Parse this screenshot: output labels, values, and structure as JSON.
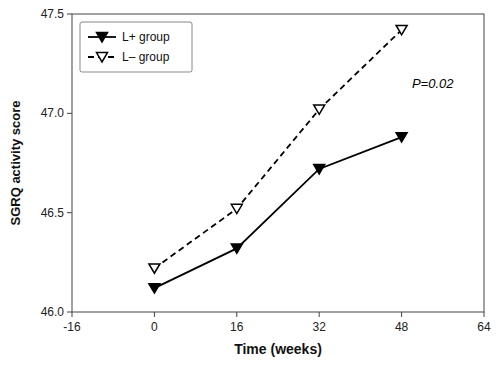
{
  "chart_data": {
    "type": "line",
    "x": [
      0,
      16,
      32,
      48
    ],
    "series": [
      {
        "name": "L+ group",
        "color": "#000000",
        "values": [
          46.12,
          46.32,
          46.72,
          46.88
        ],
        "line_style": "solid",
        "marker": "triangle-down"
      },
      {
        "name": "L– group",
        "color": "#000000",
        "values": [
          46.22,
          46.52,
          47.02,
          47.42
        ],
        "line_style": "dashed",
        "marker": "triangle-down-open"
      }
    ],
    "xlim": [
      -16,
      64
    ],
    "ylim": [
      46.0,
      47.5
    ],
    "xticks": [
      -16,
      0,
      16,
      32,
      48,
      64
    ],
    "yticks": [
      {
        "value": 46.0,
        "label": "46.0"
      },
      46.5,
      {
        "value": 47.0,
        "label": "47.0"
      },
      47.5
    ],
    "xlabel": "Time (weeks)",
    "ylabel": "SGRQ activity score",
    "annotations": [
      {
        "text": "P=0.02",
        "x": 50,
        "y": 47.15
      }
    ],
    "legend": "upper left"
  }
}
